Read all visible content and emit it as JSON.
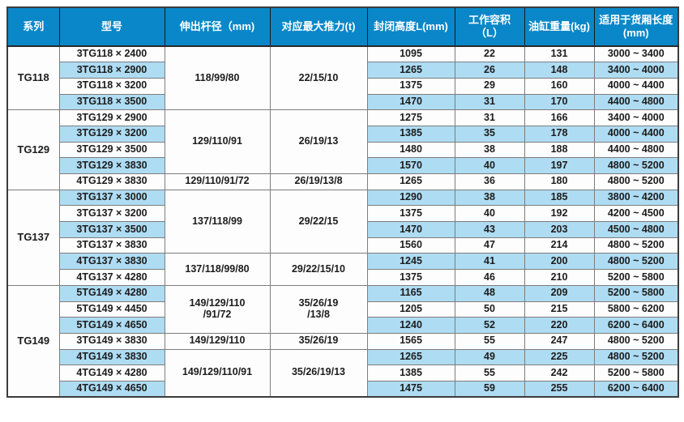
{
  "colors": {
    "header_bg": "#0a87c8",
    "row_alt_bg": "#aedcf3",
    "row_bg": "#fdfdfd",
    "header_text": "#ffffff",
    "cell_text": "#1c1c1c",
    "grid_line": "#7d7d7d",
    "outer_border": "#3c3c3c"
  },
  "table": {
    "headers": [
      "系列",
      "型号",
      "伸出杆径（mm)",
      "对应最大推力(t)",
      "封闭高度L(mm)",
      "工作容积（L）",
      "油缸重量(kg)",
      "适用于货厢长度(mm)"
    ],
    "groups": [
      {
        "series": "TG118",
        "subgroups": [
          {
            "rod_diameter": "118/99/80",
            "max_thrust": "22/15/10",
            "rows": [
              {
                "model": "3TG118 × 2400",
                "closed_height": "1095",
                "working_volume": "22",
                "cylinder_weight": "131",
                "box_length": "3000 ~ 3400"
              },
              {
                "model": "3TG118 × 2900",
                "closed_height": "1265",
                "working_volume": "26",
                "cylinder_weight": "148",
                "box_length": "3400 ~ 4000"
              },
              {
                "model": "3TG118 × 3200",
                "closed_height": "1375",
                "working_volume": "29",
                "cylinder_weight": "160",
                "box_length": "4000 ~ 4400"
              },
              {
                "model": "3TG118 × 3500",
                "closed_height": "1470",
                "working_volume": "31",
                "cylinder_weight": "170",
                "box_length": "4400 ~ 4800"
              }
            ]
          }
        ]
      },
      {
        "series": "TG129",
        "subgroups": [
          {
            "rod_diameter": "129/110/91",
            "max_thrust": "26/19/13",
            "rows": [
              {
                "model": "3TG129 × 2900",
                "closed_height": "1275",
                "working_volume": "31",
                "cylinder_weight": "166",
                "box_length": "3400 ~ 4000"
              },
              {
                "model": "3TG129 × 3200",
                "closed_height": "1385",
                "working_volume": "35",
                "cylinder_weight": "178",
                "box_length": "4000 ~ 4400"
              },
              {
                "model": "3TG129 × 3500",
                "closed_height": "1480",
                "working_volume": "38",
                "cylinder_weight": "188",
                "box_length": "4400 ~ 4800"
              },
              {
                "model": "3TG129 × 3830",
                "closed_height": "1570",
                "working_volume": "40",
                "cylinder_weight": "197",
                "box_length": "4800 ~ 5200"
              }
            ]
          },
          {
            "rod_diameter": "129/110/91/72",
            "max_thrust": "26/19/13/8",
            "rows": [
              {
                "model": "4TG129 × 3830",
                "closed_height": "1265",
                "working_volume": "36",
                "cylinder_weight": "180",
                "box_length": "4800 ~ 5200"
              }
            ]
          }
        ]
      },
      {
        "series": "TG137",
        "subgroups": [
          {
            "rod_diameter": "137/118/99",
            "max_thrust": "29/22/15",
            "rows": [
              {
                "model": "3TG137 × 3000",
                "closed_height": "1290",
                "working_volume": "38",
                "cylinder_weight": "185",
                "box_length": "3800 ~ 4200"
              },
              {
                "model": "3TG137 × 3200",
                "closed_height": "1375",
                "working_volume": "40",
                "cylinder_weight": "192",
                "box_length": "4200 ~ 4500"
              },
              {
                "model": "3TG137 × 3500",
                "closed_height": "1470",
                "working_volume": "43",
                "cylinder_weight": "203",
                "box_length": "4500 ~ 4800"
              },
              {
                "model": "3TG137 × 3830",
                "closed_height": "1560",
                "working_volume": "47",
                "cylinder_weight": "214",
                "box_length": "4800 ~ 5200"
              }
            ]
          },
          {
            "rod_diameter": "137/118/99/80",
            "max_thrust": "29/22/15/10",
            "rows": [
              {
                "model": "4TG137 × 3830",
                "closed_height": "1245",
                "working_volume": "41",
                "cylinder_weight": "200",
                "box_length": "4800 ~ 5200"
              },
              {
                "model": "4TG137 × 4280",
                "closed_height": "1375",
                "working_volume": "46",
                "cylinder_weight": "210",
                "box_length": "5200 ~ 5800"
              }
            ]
          }
        ]
      },
      {
        "series": "TG149",
        "subgroups": [
          {
            "rod_diameter": "149/129/110\n/91/72",
            "max_thrust": "35/26/19\n/13/8",
            "rows": [
              {
                "model": "5TG149 × 4280",
                "closed_height": "1165",
                "working_volume": "48",
                "cylinder_weight": "209",
                "box_length": "5200 ~ 5800"
              },
              {
                "model": "5TG149 × 4450",
                "closed_height": "1205",
                "working_volume": "50",
                "cylinder_weight": "215",
                "box_length": "5800 ~ 6200"
              },
              {
                "model": "5TG149 × 4650",
                "closed_height": "1240",
                "working_volume": "52",
                "cylinder_weight": "220",
                "box_length": "6200 ~ 6400"
              }
            ]
          },
          {
            "rod_diameter": "149/129/110",
            "max_thrust": "35/26/19",
            "rows": [
              {
                "model": "3TG149 × 3830",
                "closed_height": "1565",
                "working_volume": "55",
                "cylinder_weight": "247",
                "box_length": "4800 ~ 5200"
              }
            ]
          },
          {
            "rod_diameter": "149/129/110/91",
            "max_thrust": "35/26/19/13",
            "rows": [
              {
                "model": "4TG149 × 3830",
                "closed_height": "1265",
                "working_volume": "49",
                "cylinder_weight": "225",
                "box_length": "4800 ~ 5200"
              },
              {
                "model": "4TG149 × 4280",
                "closed_height": "1385",
                "working_volume": "55",
                "cylinder_weight": "242",
                "box_length": "5200 ~ 5800"
              },
              {
                "model": "4TG149 × 4650",
                "closed_height": "1475",
                "working_volume": "59",
                "cylinder_weight": "255",
                "box_length": "6200 ~ 6400"
              }
            ]
          }
        ]
      }
    ]
  }
}
